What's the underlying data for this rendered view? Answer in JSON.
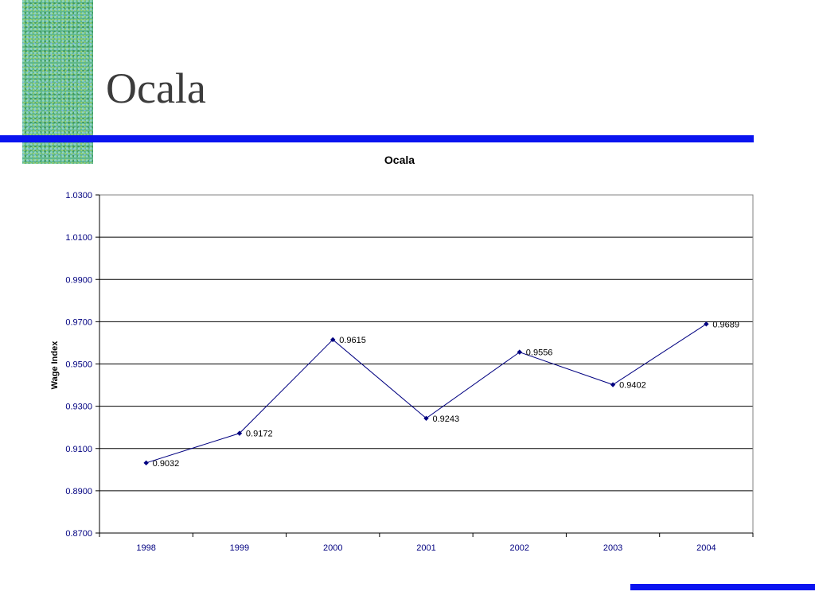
{
  "slide": {
    "title": "Ocala"
  },
  "colors": {
    "accent_bar": "#0a14f0",
    "series_line": "#000080",
    "pattern": "#5fb88e"
  },
  "chart_data": {
    "type": "line",
    "title": "Ocala",
    "xlabel": "",
    "ylabel": "Wage Index",
    "categories": [
      "1998",
      "1999",
      "2000",
      "2001",
      "2002",
      "2003",
      "2004"
    ],
    "series": [
      {
        "values": [
          0.9032,
          0.9172,
          0.9615,
          0.9243,
          0.9556,
          0.9402,
          0.9689
        ],
        "labels": [
          "0.9032",
          "0.9172",
          "0.9615",
          "0.9243",
          "0.9556",
          "0.9402",
          "0.9689"
        ],
        "marker": "diamond"
      }
    ],
    "ylim": [
      0.87,
      1.03
    ],
    "yticks": [
      "0.8700",
      "0.8900",
      "0.9100",
      "0.9300",
      "0.9500",
      "0.9700",
      "0.9900",
      "1.0100",
      "1.0300"
    ],
    "grid": "horizontal",
    "legend": "none"
  }
}
